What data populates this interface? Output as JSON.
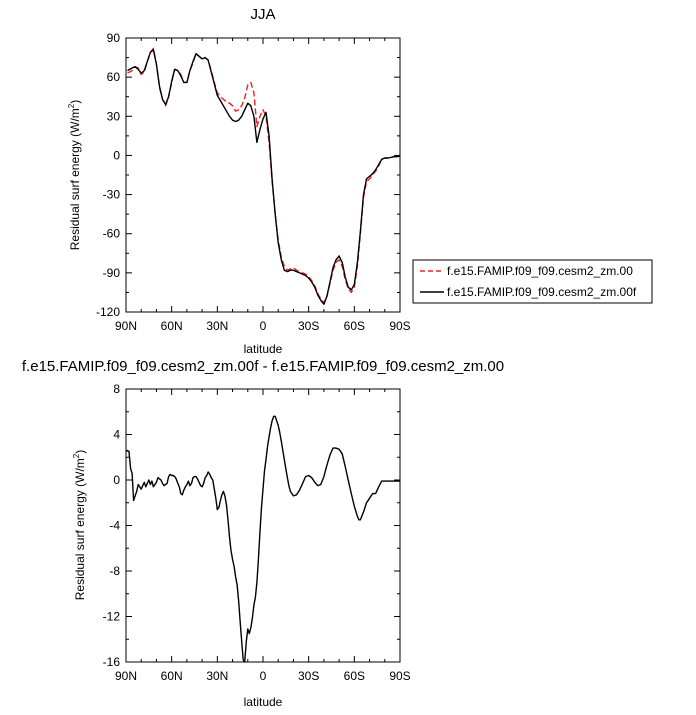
{
  "chart_data": [
    {
      "type": "line",
      "title": "JJA",
      "xlabel": "latitude",
      "ylabel": "Residual surf energy (W/m",
      "ylabel_sup": "2",
      "ylabel_tail": ")",
      "xlim": [
        90,
        -90
      ],
      "ylim": [
        -120,
        90
      ],
      "x_ticks": [
        90,
        60,
        30,
        0,
        -30,
        -60,
        -90
      ],
      "x_tick_labels": [
        "90N",
        "60N",
        "30N",
        "0",
        "30S",
        "60S",
        "90S"
      ],
      "y_ticks": [
        -120,
        -90,
        -60,
        -30,
        0,
        30,
        60,
        90
      ],
      "y_tick_labels": [
        "-120",
        "-90",
        "-60",
        "-30",
        "0",
        "30",
        "60",
        "90"
      ],
      "legend_position": "right",
      "series": [
        {
          "name": "f.e15.FAMIP.f09_f09.cesm2_zm.00",
          "color": "#e8231e",
          "dash": true,
          "x": [
            89,
            86,
            84,
            82,
            80,
            78,
            76,
            74,
            72,
            70,
            68,
            66,
            64,
            62,
            60,
            58,
            56,
            54,
            52,
            50,
            48,
            46,
            44,
            42,
            40,
            38,
            36,
            34,
            32,
            30,
            28,
            26,
            24,
            22,
            20,
            18,
            16,
            14,
            12,
            10,
            8,
            6,
            4,
            2,
            0,
            -2,
            -4,
            -6,
            -8,
            -10,
            -12,
            -14,
            -16,
            -18,
            -20,
            -22,
            -24,
            -26,
            -28,
            -30,
            -32,
            -34,
            -36,
            -38,
            -40,
            -42,
            -44,
            -46,
            -48,
            -50,
            -52,
            -54,
            -56,
            -58,
            -60,
            -62,
            -64,
            -66,
            -68,
            -70,
            -72,
            -74,
            -76,
            -78,
            -80,
            -82,
            -84,
            -86,
            -88,
            -90
          ],
          "y": [
            63,
            65,
            68,
            67,
            62,
            64,
            72,
            79,
            82,
            70,
            52,
            43,
            38,
            45,
            56,
            66,
            65,
            62,
            56,
            56,
            65,
            71,
            78,
            76,
            74,
            75,
            73,
            65,
            56,
            48,
            45,
            43,
            41,
            40,
            38,
            34,
            35,
            38,
            44,
            54,
            56,
            48,
            22,
            30,
            35,
            30,
            10,
            -20,
            -45,
            -65,
            -78,
            -85,
            -88,
            -87,
            -86,
            -88,
            -89,
            -90,
            -91,
            -93,
            -96,
            -100,
            -106,
            -110,
            -113,
            -108,
            -98,
            -88,
            -82,
            -80,
            -85,
            -95,
            -102,
            -105,
            -101,
            -85,
            -60,
            -32,
            -20,
            -18,
            -15,
            -12,
            -8,
            -3,
            -2,
            -2,
            -1.5,
            -1,
            -1,
            -0.5
          ]
        },
        {
          "name": "f.e15.FAMIP.f09_f09.cesm2_zm.00f",
          "color": "#000000",
          "dash": false,
          "x": [
            89,
            86,
            84,
            82,
            80,
            78,
            76,
            74,
            72,
            70,
            68,
            66,
            64,
            62,
            60,
            58,
            56,
            54,
            52,
            50,
            48,
            46,
            44,
            42,
            40,
            38,
            36,
            34,
            32,
            30,
            28,
            26,
            24,
            22,
            20,
            18,
            16,
            14,
            12,
            10,
            8,
            6,
            4,
            2,
            0,
            -2,
            -4,
            -6,
            -8,
            -10,
            -12,
            -14,
            -16,
            -18,
            -20,
            -22,
            -24,
            -26,
            -28,
            -30,
            -32,
            -34,
            -36,
            -38,
            -40,
            -42,
            -44,
            -46,
            -48,
            -50,
            -52,
            -54,
            -56,
            -58,
            -60,
            -62,
            -64,
            -66,
            -68,
            -70,
            -72,
            -74,
            -76,
            -78,
            -80,
            -82,
            -84,
            -86,
            -88,
            -90
          ],
          "y": [
            65,
            67,
            68,
            66,
            63,
            65,
            72,
            79,
            81,
            70,
            53,
            43,
            39,
            45,
            57,
            66,
            65,
            61,
            56,
            56,
            65,
            72,
            78,
            76,
            74,
            75,
            73,
            64,
            55,
            46,
            42,
            38,
            34,
            30,
            27,
            26,
            27,
            30,
            35,
            40,
            38,
            30,
            10,
            20,
            28,
            33,
            15,
            -18,
            -45,
            -67,
            -80,
            -88,
            -89,
            -88,
            -88,
            -89,
            -90,
            -91,
            -92,
            -94,
            -97,
            -101,
            -107,
            -111,
            -114,
            -108,
            -97,
            -86,
            -80,
            -77,
            -82,
            -93,
            -101,
            -103,
            -99,
            -82,
            -58,
            -30,
            -18,
            -16,
            -14,
            -11,
            -7,
            -3,
            -2,
            -2,
            -1.5,
            -1,
            -1,
            -0.5
          ]
        }
      ]
    },
    {
      "type": "line",
      "title": "f.e15.FAMIP.f09_f09.cesm2_zm.00f - f.e15.FAMIP.f09_f09.cesm2_zm.00",
      "xlabel": "latitude",
      "ylabel": "Residual surf energy (W/m",
      "ylabel_sup": "2",
      "ylabel_tail": ")",
      "xlim": [
        90,
        -90
      ],
      "ylim": [
        -16,
        8
      ],
      "x_ticks": [
        90,
        60,
        30,
        0,
        -30,
        -60,
        -90
      ],
      "x_tick_labels": [
        "90N",
        "60N",
        "30N",
        "0",
        "30S",
        "60S",
        "90S"
      ],
      "y_ticks": [
        -16,
        -12,
        -8,
        -4,
        0,
        4,
        8
      ],
      "y_tick_labels": [
        "-16",
        "-12",
        "-8",
        "-4",
        "0",
        "4",
        "8"
      ],
      "series": [
        {
          "color": "#000000",
          "x": [
            90,
            89,
            88,
            87,
            86,
            85,
            84,
            83,
            82,
            81,
            80,
            79,
            78,
            77,
            76,
            75,
            74,
            73,
            72,
            71,
            70,
            69,
            68,
            67,
            66,
            65,
            64,
            63,
            62,
            61,
            60,
            59,
            58,
            57,
            56,
            55,
            54,
            53,
            52,
            51,
            50,
            49,
            48,
            47,
            46,
            45,
            44,
            43,
            42,
            41,
            40,
            39,
            38,
            37,
            36,
            35,
            34,
            33,
            32,
            31,
            30,
            29,
            28,
            27,
            26,
            25,
            24,
            23,
            22,
            21,
            20,
            19,
            18,
            17,
            16,
            15,
            14,
            13,
            12,
            11,
            10,
            9,
            8,
            7,
            6,
            5,
            4,
            3,
            2,
            1,
            0,
            -1,
            -2,
            -3,
            -4,
            -5,
            -6,
            -7,
            -8,
            -9,
            -10,
            -11,
            -12,
            -13,
            -14,
            -15,
            -16,
            -17,
            -18,
            -20,
            -22,
            -24,
            -26,
            -28,
            -30,
            -32,
            -34,
            -36,
            -38,
            -40,
            -42,
            -44,
            -46,
            -48,
            -50,
            -52,
            -54,
            -56,
            -58,
            -60,
            -62,
            -63,
            -64,
            -66,
            -68,
            -70,
            -72,
            -74,
            -76,
            -78,
            -80,
            -82,
            -84,
            -86,
            -88,
            -90
          ],
          "y": [
            2.5,
            2.6,
            2.5,
            1.0,
            0.6,
            -1.8,
            -1.4,
            -1.0,
            -0.4,
            -0.6,
            -0.8,
            -0.5,
            -0.2,
            -0.6,
            -0.3,
            0.0,
            -0.4,
            -0.1,
            -0.6,
            -0.4,
            -0.2,
            0.2,
            0.1,
            0.0,
            -0.3,
            -0.5,
            -0.4,
            -0.3,
            0.3,
            0.5,
            0.4,
            0.4,
            0.3,
            0.1,
            -0.3,
            -0.6,
            -1.2,
            -1.3,
            -0.9,
            -0.6,
            -0.4,
            -0.1,
            -0.5,
            -0.3,
            0.2,
            0.3,
            0.3,
            0.1,
            -0.2,
            -0.5,
            -0.6,
            -0.3,
            0.2,
            0.4,
            0.7,
            0.5,
            0.2,
            0.0,
            -0.8,
            -1.6,
            -2.6,
            -2.4,
            -1.8,
            -1.3,
            -1.0,
            -1.4,
            -2.2,
            -3.5,
            -5.0,
            -6.2,
            -7.0,
            -7.6,
            -8.5,
            -9.2,
            -10.6,
            -12.5,
            -14.2,
            -15.8,
            -16.0,
            -14.2,
            -13.1,
            -13.5,
            -13.0,
            -12.2,
            -11.0,
            -10.3,
            -9.0,
            -7.0,
            -4.5,
            -2.4,
            -0.8,
            0.8,
            1.8,
            3.0,
            3.8,
            4.6,
            5.2,
            5.6,
            5.6,
            5.2,
            4.8,
            4.2,
            3.4,
            2.6,
            1.8,
            1.0,
            0.2,
            -0.5,
            -1.0,
            -1.4,
            -1.3,
            -0.9,
            -0.3,
            0.3,
            0.4,
            0.2,
            -0.2,
            -0.5,
            -0.4,
            0.3,
            1.3,
            2.2,
            2.8,
            2.8,
            2.7,
            2.3,
            1.2,
            0.0,
            -1.2,
            -2.3,
            -3.2,
            -3.5,
            -3.5,
            -2.8,
            -2.0,
            -1.6,
            -1.2,
            -1.2,
            -0.6,
            -0.1,
            -0.1,
            -0.1,
            -0.1,
            -0.1,
            -0.1,
            -0.1
          ]
        }
      ]
    }
  ]
}
